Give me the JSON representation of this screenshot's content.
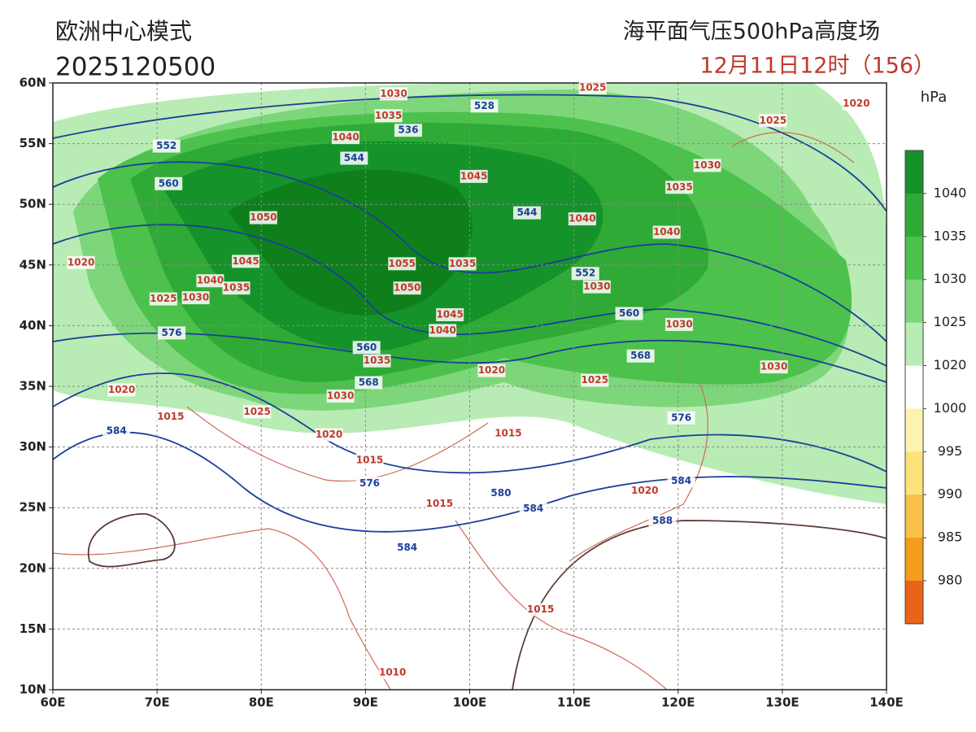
{
  "header": {
    "model": "欧洲中心模式",
    "init_time": "2025120500",
    "product": "海平面气压500hPa高度场",
    "valid_time": "12月11日12时（156）"
  },
  "map": {
    "lonlim": [
      60,
      140
    ],
    "latlim": [
      10,
      60
    ],
    "lonticks": [
      {
        "value": 60,
        "label": "60E"
      },
      {
        "value": 70,
        "label": "70E"
      },
      {
        "value": 80,
        "label": "80E"
      },
      {
        "value": 90,
        "label": "90E"
      },
      {
        "value": 100,
        "label": "100E"
      },
      {
        "value": 110,
        "label": "110E"
      },
      {
        "value": 120,
        "label": "120E"
      },
      {
        "value": 130,
        "label": "130E"
      },
      {
        "value": 140,
        "label": "140E"
      }
    ],
    "latticks": [
      {
        "value": 10,
        "label": "10N"
      },
      {
        "value": 15,
        "label": "15N"
      },
      {
        "value": 20,
        "label": "20N"
      },
      {
        "value": 25,
        "label": "25N"
      },
      {
        "value": 30,
        "label": "30N"
      },
      {
        "value": 35,
        "label": "35N"
      },
      {
        "value": 40,
        "label": "40N"
      },
      {
        "value": 45,
        "label": "45N"
      },
      {
        "value": 50,
        "label": "50N"
      },
      {
        "value": 55,
        "label": "55N"
      },
      {
        "value": 60,
        "label": "60N"
      }
    ],
    "height_color": "#1b3f9a",
    "pressure_color": "#c0392b",
    "height_labels": [
      {
        "value": 528,
        "lon": 101.4,
        "lat": 58.1
      },
      {
        "value": 536,
        "lon": 94.1,
        "lat": 56.1
      },
      {
        "value": 544,
        "lon": 88.9,
        "lat": 53.8
      },
      {
        "value": 552,
        "lon": 70.9,
        "lat": 54.8
      },
      {
        "value": 560,
        "lon": 71.1,
        "lat": 51.7
      },
      {
        "value": 544,
        "lon": 105.5,
        "lat": 49.3
      },
      {
        "value": 552,
        "lon": 111.1,
        "lat": 44.3
      },
      {
        "value": 560,
        "lon": 115.3,
        "lat": 41.0
      },
      {
        "value": 568,
        "lon": 116.4,
        "lat": 37.5
      },
      {
        "value": 576,
        "lon": 71.4,
        "lat": 39.4
      },
      {
        "value": 560,
        "lon": 90.1,
        "lat": 38.2
      },
      {
        "value": 568,
        "lon": 90.3,
        "lat": 35.3
      },
      {
        "value": 576,
        "lon": 120.3,
        "lat": 32.4
      },
      {
        "value": 584,
        "lon": 66.1,
        "lat": 31.3
      },
      {
        "value": 576,
        "lon": 90.4,
        "lat": 27.0
      },
      {
        "value": 580,
        "lon": 103.0,
        "lat": 26.2
      },
      {
        "value": 584,
        "lon": 106.1,
        "lat": 24.9
      },
      {
        "value": 584,
        "lon": 120.3,
        "lat": 27.2
      },
      {
        "value": 584,
        "lon": 94.0,
        "lat": 21.7
      },
      {
        "value": 588,
        "lon": 118.5,
        "lat": 23.9
      }
    ],
    "pressure_labels": [
      {
        "value": 1030,
        "lon": 92.7,
        "lat": 59.1
      },
      {
        "value": 1035,
        "lon": 92.2,
        "lat": 57.3
      },
      {
        "value": 1040,
        "lon": 88.1,
        "lat": 55.5
      },
      {
        "value": 1045,
        "lon": 100.4,
        "lat": 52.3
      },
      {
        "value": 1050,
        "lon": 80.2,
        "lat": 48.9
      },
      {
        "value": 1045,
        "lon": 78.5,
        "lat": 45.3
      },
      {
        "value": 1040,
        "lon": 75.1,
        "lat": 43.7
      },
      {
        "value": 1035,
        "lon": 77.6,
        "lat": 43.1
      },
      {
        "value": 1025,
        "lon": 70.6,
        "lat": 42.2
      },
      {
        "value": 1030,
        "lon": 73.7,
        "lat": 42.3
      },
      {
        "value": 1055,
        "lon": 93.5,
        "lat": 45.1
      },
      {
        "value": 1035,
        "lon": 99.3,
        "lat": 45.1
      },
      {
        "value": 1050,
        "lon": 94.0,
        "lat": 43.1
      },
      {
        "value": 1045,
        "lon": 98.1,
        "lat": 40.9
      },
      {
        "value": 1040,
        "lon": 97.4,
        "lat": 39.6
      },
      {
        "value": 1035,
        "lon": 91.1,
        "lat": 37.1
      },
      {
        "value": 1020,
        "lon": 102.1,
        "lat": 36.3
      },
      {
        "value": 1030,
        "lon": 87.6,
        "lat": 34.2
      },
      {
        "value": 1040,
        "lon": 110.8,
        "lat": 48.8
      },
      {
        "value": 1040,
        "lon": 118.9,
        "lat": 47.7
      },
      {
        "value": 1035,
        "lon": 120.1,
        "lat": 51.4
      },
      {
        "value": 1030,
        "lon": 122.8,
        "lat": 53.2
      },
      {
        "value": 1025,
        "lon": 111.8,
        "lat": 59.6
      },
      {
        "value": 1020,
        "lon": 137.1,
        "lat": 58.3
      },
      {
        "value": 1025,
        "lon": 129.1,
        "lat": 56.9
      },
      {
        "value": 1030,
        "lon": 112.2,
        "lat": 43.2
      },
      {
        "value": 1030,
        "lon": 120.1,
        "lat": 40.1
      },
      {
        "value": 1030,
        "lon": 129.2,
        "lat": 36.6
      },
      {
        "value": 1025,
        "lon": 112.0,
        "lat": 35.5
      },
      {
        "value": 1020,
        "lon": 62.7,
        "lat": 45.2
      },
      {
        "value": 1020,
        "lon": 66.6,
        "lat": 34.7
      },
      {
        "value": 1015,
        "lon": 71.3,
        "lat": 32.5
      },
      {
        "value": 1025,
        "lon": 79.6,
        "lat": 32.9
      },
      {
        "value": 1020,
        "lon": 86.5,
        "lat": 31.0
      },
      {
        "value": 1015,
        "lon": 90.4,
        "lat": 28.9
      },
      {
        "value": 1015,
        "lon": 103.7,
        "lat": 31.1
      },
      {
        "value": 1015,
        "lon": 97.1,
        "lat": 25.3
      },
      {
        "value": 1020,
        "lon": 116.8,
        "lat": 26.4
      },
      {
        "value": 1015,
        "lon": 106.8,
        "lat": 16.6
      },
      {
        "value": 1010,
        "lon": 92.6,
        "lat": 11.4
      }
    ]
  },
  "colorbar": {
    "unit": "hPa",
    "levels": [
      1040,
      1035,
      1030,
      1025,
      1020,
      1000,
      995,
      990,
      985,
      980
    ],
    "colors": [
      "#16922a",
      "#2faa36",
      "#4cc24c",
      "#7ed67a",
      "#b8ecb4",
      "#ffffff",
      "#fdf3b0",
      "#fbe27a",
      "#f8c24a",
      "#f39c1e",
      "#e8641a"
    ]
  }
}
